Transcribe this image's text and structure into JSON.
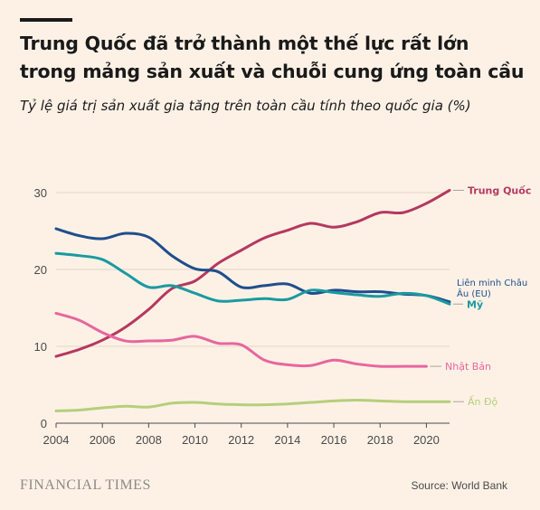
{
  "header": {
    "title": "Trung Quốc đã trở thành một thế lực rất lớn trong mảng sản xuất và chuỗi cung ứng toàn cầu",
    "subtitle": "Tỷ lệ giá trị sản xuất gia tăng trên toàn cầu tính theo quốc gia (%)"
  },
  "footer": {
    "brand": "FINANCIAL TIMES",
    "source": "Source: World Bank"
  },
  "chart_data": {
    "type": "line",
    "title": "Trung Quốc đã trở thành một thế lực rất lớn trong mảng sản xuất và chuỗi cung ứng toàn cầu",
    "subtitle": "Tỷ lệ giá trị sản xuất gia tăng trên toàn cầu tính theo quốc gia (%)",
    "xlabel": "",
    "ylabel": "",
    "xlim": [
      2004,
      2021
    ],
    "ylim": [
      0,
      30
    ],
    "xticks": [
      2004,
      2006,
      2008,
      2010,
      2012,
      2014,
      2016,
      2018,
      2020
    ],
    "yticks": [
      0,
      10,
      20,
      30
    ],
    "grid": true,
    "legend": "direct labels at line ends",
    "series": [
      {
        "name": "Trung Quốc",
        "color": "#b5385f",
        "x": [
          2004,
          2005,
          2006,
          2007,
          2008,
          2009,
          2010,
          2011,
          2012,
          2013,
          2014,
          2015,
          2016,
          2017,
          2018,
          2019,
          2020,
          2021
        ],
        "values": [
          8.7,
          9.6,
          10.8,
          12.5,
          14.8,
          17.5,
          18.5,
          20.8,
          22.5,
          24.1,
          25.1,
          26.0,
          25.5,
          26.2,
          27.4,
          27.4,
          28.6,
          30.3
        ]
      },
      {
        "name": "Liên minh Châu Âu (EU)",
        "color": "#1f4e8c",
        "x": [
          2004,
          2005,
          2006,
          2007,
          2008,
          2009,
          2010,
          2011,
          2012,
          2013,
          2014,
          2015,
          2016,
          2017,
          2018,
          2019,
          2020,
          2021
        ],
        "values": [
          25.3,
          24.4,
          24.0,
          24.7,
          24.2,
          21.8,
          20.1,
          19.7,
          17.7,
          17.9,
          18.1,
          16.9,
          17.3,
          17.1,
          17.1,
          16.8,
          16.6,
          15.8
        ]
      },
      {
        "name": "Mỹ",
        "color": "#1a9aa0",
        "x": [
          2004,
          2005,
          2006,
          2007,
          2008,
          2009,
          2010,
          2011,
          2012,
          2013,
          2014,
          2015,
          2016,
          2017,
          2018,
          2019,
          2020,
          2021
        ],
        "values": [
          22.1,
          21.8,
          21.3,
          19.5,
          17.7,
          17.9,
          16.9,
          15.9,
          16.0,
          16.2,
          16.1,
          17.3,
          17.0,
          16.7,
          16.5,
          16.9,
          16.6,
          15.5
        ]
      },
      {
        "name": "Nhật Bản",
        "color": "#e8669e",
        "x": [
          2004,
          2005,
          2006,
          2007,
          2008,
          2009,
          2010,
          2011,
          2012,
          2013,
          2014,
          2015,
          2016,
          2017,
          2018,
          2019,
          2020
        ],
        "values": [
          14.3,
          13.4,
          11.8,
          10.7,
          10.7,
          10.8,
          11.3,
          10.4,
          10.2,
          8.2,
          7.6,
          7.5,
          8.2,
          7.7,
          7.4,
          7.4,
          7.4
        ]
      },
      {
        "name": "Ấn Độ",
        "color": "#b5cf7a",
        "x": [
          2004,
          2005,
          2006,
          2007,
          2008,
          2009,
          2010,
          2011,
          2012,
          2013,
          2014,
          2015,
          2016,
          2017,
          2018,
          2019,
          2020,
          2021
        ],
        "values": [
          1.6,
          1.7,
          2.0,
          2.2,
          2.1,
          2.6,
          2.7,
          2.5,
          2.4,
          2.4,
          2.5,
          2.7,
          2.9,
          3.0,
          2.9,
          2.8,
          2.8,
          2.8
        ]
      }
    ]
  }
}
